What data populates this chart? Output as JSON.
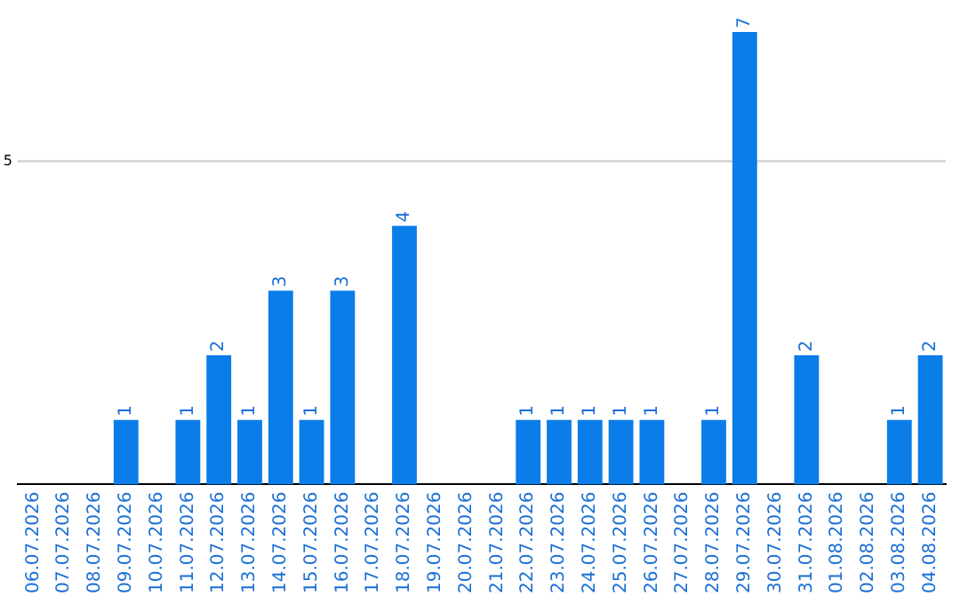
{
  "chart_data": {
    "type": "bar",
    "categories": [
      "06.07.2026",
      "07.07.2026",
      "08.07.2026",
      "09.07.2026",
      "10.07.2026",
      "11.07.2026",
      "12.07.2026",
      "13.07.2026",
      "14.07.2026",
      "15.07.2026",
      "16.07.2026",
      "17.07.2026",
      "18.07.2026",
      "19.07.2026",
      "20.07.2026",
      "21.07.2026",
      "22.07.2026",
      "23.07.2026",
      "24.07.2026",
      "25.07.2026",
      "26.07.2026",
      "27.07.2026",
      "28.07.2026",
      "29.07.2026",
      "30.07.2026",
      "31.07.2026",
      "01.08.2026",
      "02.08.2026",
      "03.08.2026",
      "04.08.2026"
    ],
    "values": [
      0,
      0,
      0,
      1,
      0,
      1,
      2,
      1,
      3,
      1,
      3,
      0,
      4,
      0,
      0,
      0,
      1,
      1,
      1,
      1,
      1,
      0,
      1,
      7,
      0,
      2,
      0,
      0,
      1,
      2
    ],
    "value_labels": [
      null,
      null,
      null,
      "1",
      null,
      "1",
      "2",
      "1",
      "3",
      "1",
      "3",
      null,
      "4",
      null,
      null,
      null,
      "1",
      "1",
      "1",
      "1",
      "1",
      null,
      "1",
      "7",
      null,
      "2",
      null,
      null,
      "1",
      "2"
    ],
    "color": "#0a7de8",
    "ref_lines": [
      {
        "axis": "y",
        "value": 5,
        "label": "5",
        "color": "#c8c8c8"
      }
    ],
    "legend": false
  }
}
